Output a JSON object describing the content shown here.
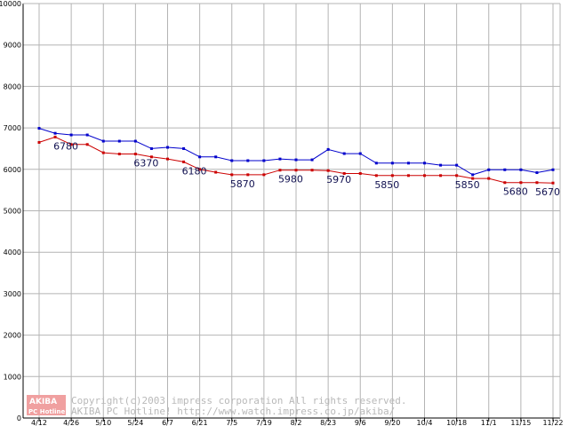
{
  "chart_data": {
    "type": "line",
    "title": "",
    "xlabel": "",
    "ylabel": "",
    "ylim": [
      0,
      10000
    ],
    "yticks": [
      0,
      1000,
      2000,
      3000,
      4000,
      5000,
      6000,
      7000,
      8000,
      9000,
      10000
    ],
    "x_tick_labels": [
      "4/12",
      "4/26",
      "5/10",
      "5/24",
      "6/7",
      "6/21",
      "7/5",
      "7/19",
      "8/2",
      "8/23",
      "9/6",
      "9/20",
      "10/4",
      "10/18",
      "11/1",
      "11/15",
      "11/22"
    ],
    "grid": true,
    "series": [
      {
        "color": "#0000cc",
        "values": [
          6990,
          6870,
          6830,
          6830,
          6680,
          6680,
          6680,
          6500,
          6530,
          6500,
          6300,
          6300,
          6210,
          6210,
          6210,
          6250,
          6230,
          6230,
          6480,
          6380,
          6380,
          6150,
          6150,
          6150,
          6150,
          6100,
          6100,
          5870,
          5990,
          5990,
          5990,
          5920,
          5990
        ]
      },
      {
        "color": "#cc0000",
        "values": [
          6650,
          6780,
          6600,
          6600,
          6400,
          6370,
          6370,
          6300,
          6250,
          6180,
          6000,
          5930,
          5870,
          5870,
          5870,
          5980,
          5980,
          5980,
          5970,
          5900,
          5900,
          5850,
          5850,
          5850,
          5850,
          5850,
          5850,
          5780,
          5780,
          5680,
          5680,
          5680,
          5670
        ]
      }
    ],
    "annotations": [
      {
        "text": "6780",
        "index": 1,
        "value": 6780
      },
      {
        "text": "6370",
        "index": 6,
        "value": 6370
      },
      {
        "text": "6180",
        "index": 9,
        "value": 6180
      },
      {
        "text": "5870",
        "index": 12,
        "value": 5870
      },
      {
        "text": "5980",
        "index": 15,
        "value": 5980
      },
      {
        "text": "5970",
        "index": 18,
        "value": 5970
      },
      {
        "text": "5850",
        "index": 21,
        "value": 5850
      },
      {
        "text": "5850",
        "index": 26,
        "value": 5850
      },
      {
        "text": "5680",
        "index": 29,
        "value": 5680
      },
      {
        "text": "5670",
        "index": 32,
        "value": 5670
      }
    ]
  },
  "watermark": {
    "logo_top": "AKIBA",
    "logo_bottom": "PC Hotline!",
    "line1": "Copyright(c)2003 impress corporation All rights reserved.",
    "line2": "AKIBA PC Hotline!  http://www.watch.impress.co.jp/akiba/"
  }
}
